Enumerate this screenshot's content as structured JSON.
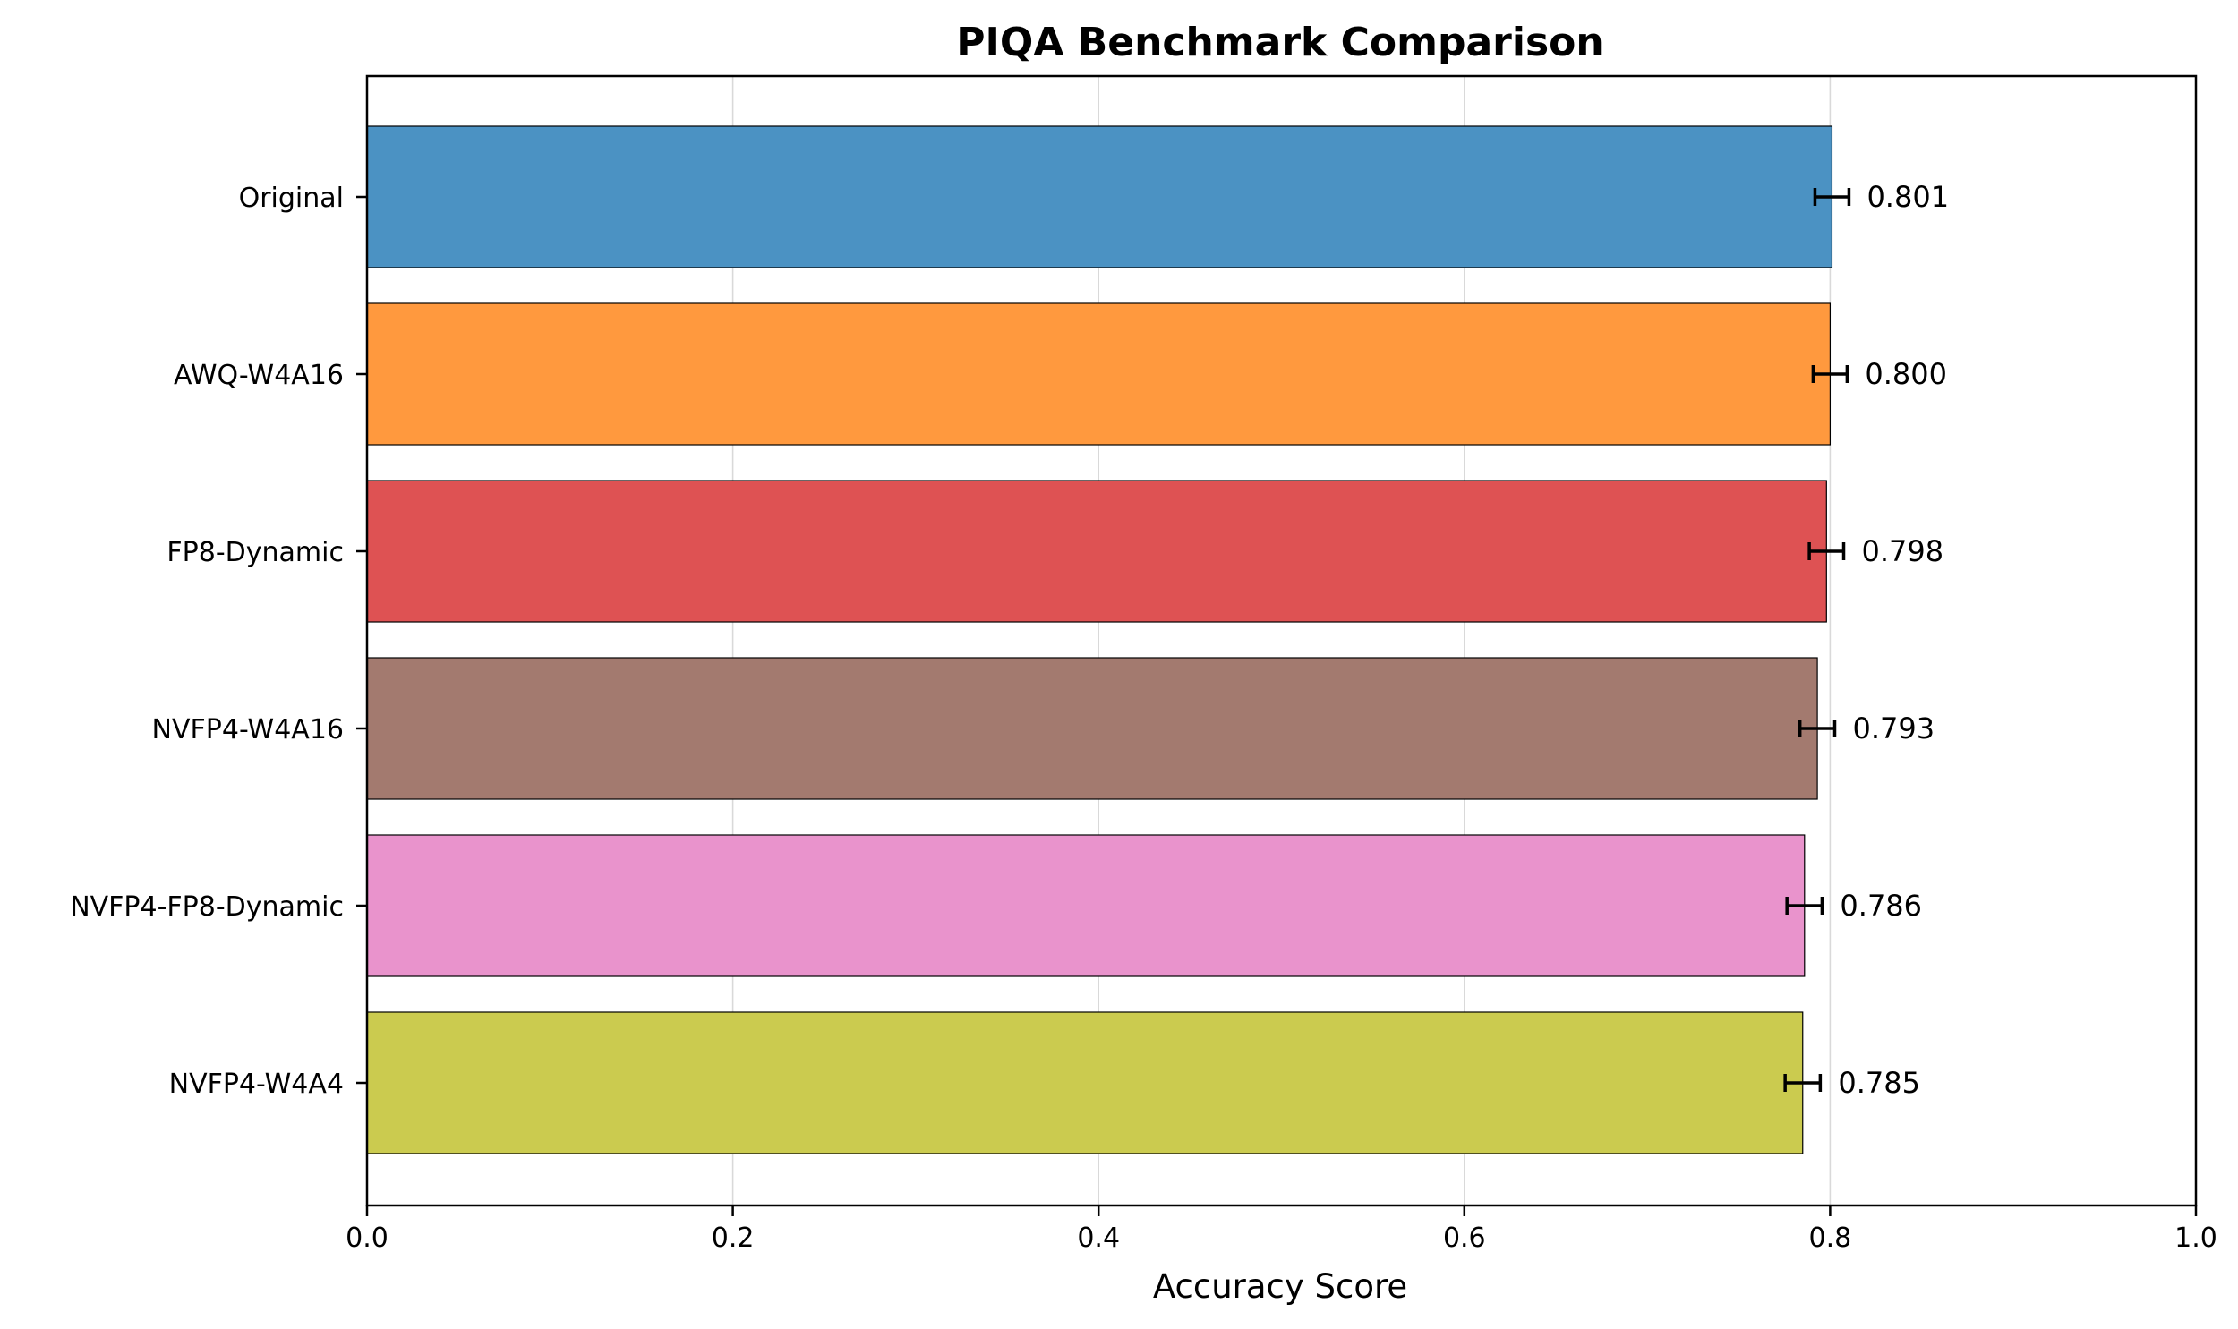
{
  "chart_data": {
    "type": "bar",
    "orientation": "horizontal",
    "title": "PIQA Benchmark Comparison",
    "xlabel": "Accuracy Score",
    "ylabel": "",
    "xlim": [
      0,
      1.0
    ],
    "xticks": [
      0.0,
      0.2,
      0.4,
      0.6,
      0.8,
      1.0
    ],
    "xtick_labels": [
      "0.0",
      "0.2",
      "0.4",
      "0.6",
      "0.8",
      "1.0"
    ],
    "grid": "vertical",
    "categories": [
      "Original",
      "AWQ-W4A16",
      "FP8-Dynamic",
      "NVFP4-W4A16",
      "NVFP4-FP8-Dynamic",
      "NVFP4-W4A4"
    ],
    "values": [
      0.801,
      0.8,
      0.798,
      0.793,
      0.786,
      0.785
    ],
    "errors": [
      0.0093,
      0.0093,
      0.0094,
      0.0095,
      0.0096,
      0.0096
    ],
    "value_labels": [
      "0.801",
      "0.800",
      "0.798",
      "0.793",
      "0.786",
      "0.785"
    ],
    "colors": [
      "#4b92c3",
      "#ff993e",
      "#de5253",
      "#a37a6f",
      "#e993cc",
      "#cbcb4f"
    ]
  }
}
